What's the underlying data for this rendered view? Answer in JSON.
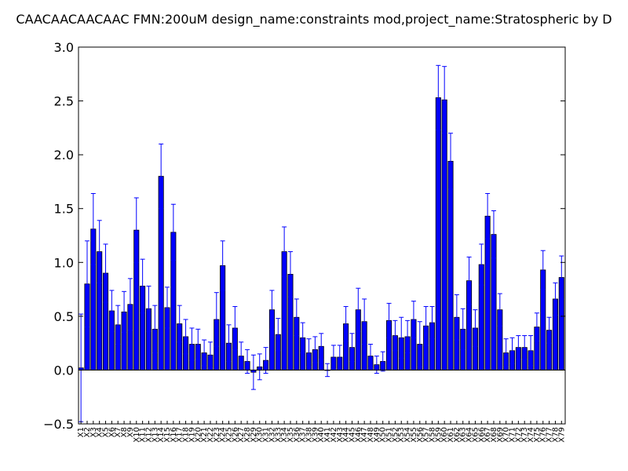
{
  "chart_data": {
    "type": "bar",
    "title": "CAACAACAACAAC  FMN:200uM  design_name:constraints mod,project_name:Stratospheric by D",
    "xlabel": "",
    "ylabel": "",
    "ylim": [
      -0.5,
      3.0
    ],
    "yticks": [
      "−0.5",
      "0.0",
      "0.5",
      "1.0",
      "1.5",
      "2.0",
      "2.5",
      "3.0"
    ],
    "ytick_values": [
      -0.5,
      0.0,
      0.5,
      1.0,
      1.5,
      2.0,
      2.5,
      3.0
    ],
    "bar_color": "#0000ff",
    "error_color": "#0000ff",
    "grid": false,
    "categories": [
      "X1",
      "X2",
      "X3",
      "X4",
      "X5",
      "X6",
      "X7",
      "X8",
      "X9",
      "X10",
      "X11",
      "X12",
      "X13",
      "X14",
      "X15",
      "X16",
      "X17",
      "X18",
      "X19",
      "X20",
      "X21",
      "X22",
      "X23",
      "X24",
      "X25",
      "X26",
      "X27",
      "X28",
      "X29",
      "X30",
      "X31",
      "X32",
      "X33",
      "X34",
      "X35",
      "X36",
      "X37",
      "X38",
      "X39",
      "X40",
      "X41",
      "X42",
      "X43",
      "X44",
      "X45",
      "X46",
      "X47",
      "X48",
      "X49",
      "X50",
      "X51",
      "X52",
      "X53",
      "X54",
      "X55",
      "X56",
      "X57",
      "X58",
      "X59",
      "X60",
      "X61",
      "X62",
      "X63",
      "X64",
      "X65",
      "X66",
      "X67",
      "X68",
      "X69",
      "X70",
      "X71",
      "X72",
      "X73",
      "X74",
      "X75",
      "X76",
      "X77",
      "X78",
      "X79"
    ],
    "values": [
      0.02,
      0.8,
      1.31,
      1.1,
      0.9,
      0.55,
      0.42,
      0.54,
      0.61,
      1.3,
      0.78,
      0.57,
      0.38,
      1.8,
      0.58,
      1.28,
      0.43,
      0.31,
      0.24,
      0.24,
      0.16,
      0.14,
      0.47,
      0.97,
      0.25,
      0.39,
      0.13,
      0.08,
      -0.02,
      0.03,
      0.09,
      0.56,
      0.33,
      1.1,
      0.89,
      0.49,
      0.3,
      0.16,
      0.19,
      0.22,
      0.0,
      0.12,
      0.12,
      0.43,
      0.21,
      0.56,
      0.45,
      0.13,
      0.05,
      0.08,
      0.46,
      0.32,
      0.3,
      0.31,
      0.47,
      0.24,
      0.41,
      0.44,
      2.53,
      2.51,
      1.94,
      0.49,
      0.38,
      0.83,
      0.39,
      0.98,
      1.43,
      1.26,
      0.56,
      0.16,
      0.18,
      0.21,
      0.21,
      0.18,
      0.4,
      0.93,
      0.37,
      0.66,
      0.86
    ],
    "errors": [
      0.5,
      0.4,
      0.33,
      0.29,
      0.27,
      0.19,
      0.18,
      0.19,
      0.24,
      0.3,
      0.25,
      0.21,
      0.22,
      0.3,
      0.19,
      0.26,
      0.17,
      0.16,
      0.15,
      0.14,
      0.12,
      0.12,
      0.25,
      0.23,
      0.17,
      0.2,
      0.13,
      0.11,
      0.16,
      0.12,
      0.12,
      0.18,
      0.15,
      0.23,
      0.21,
      0.17,
      0.14,
      0.13,
      0.12,
      0.12,
      0.06,
      0.11,
      0.11,
      0.16,
      0.13,
      0.2,
      0.21,
      0.11,
      0.08,
      0.09,
      0.16,
      0.14,
      0.19,
      0.15,
      0.17,
      0.21,
      0.18,
      0.15,
      0.3,
      0.31,
      0.26,
      0.21,
      0.19,
      0.22,
      0.17,
      0.19,
      0.21,
      0.22,
      0.15,
      0.13,
      0.12,
      0.11,
      0.11,
      0.14,
      0.13,
      0.18,
      0.12,
      0.15,
      0.2
    ]
  }
}
